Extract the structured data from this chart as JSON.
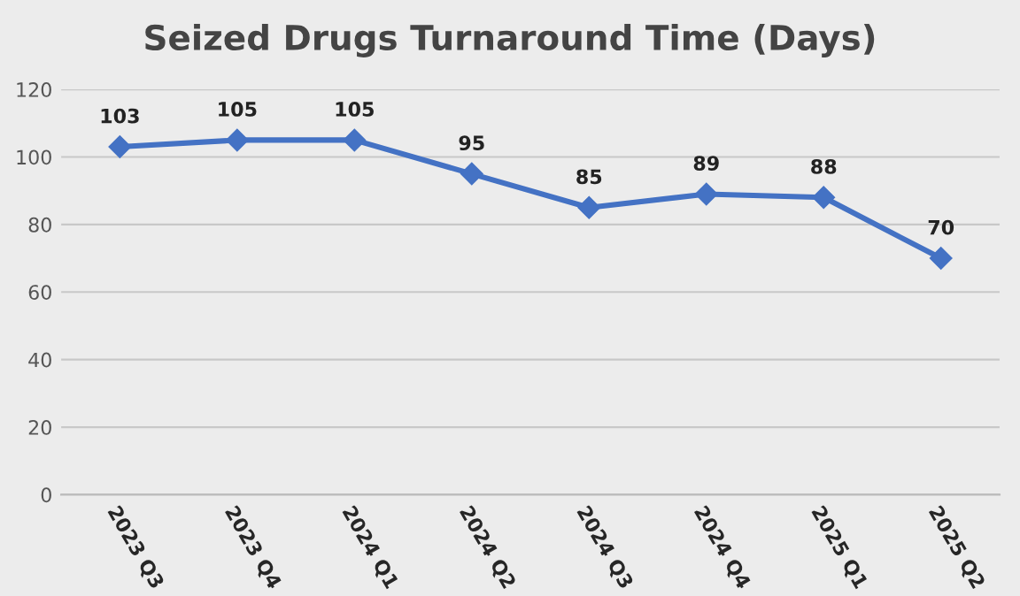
{
  "chart_data": {
    "type": "line",
    "title": "Seized Drugs Turnaround Time (Days)",
    "categories": [
      "2023 Q3",
      "2023 Q4",
      "2024 Q1",
      "2024 Q2",
      "2024 Q3",
      "2024 Q4",
      "2025 Q1",
      "2025 Q2"
    ],
    "series": [
      {
        "color": "#4472c4",
        "values": [
          103,
          105,
          105,
          95,
          85,
          89,
          88,
          70
        ]
      }
    ],
    "ylim": [
      0,
      120
    ],
    "yticks": [
      0,
      20,
      40,
      60,
      80,
      100,
      120
    ],
    "grid": "y",
    "marker": "diamond",
    "line_style": "solid",
    "data_labels": true
  }
}
